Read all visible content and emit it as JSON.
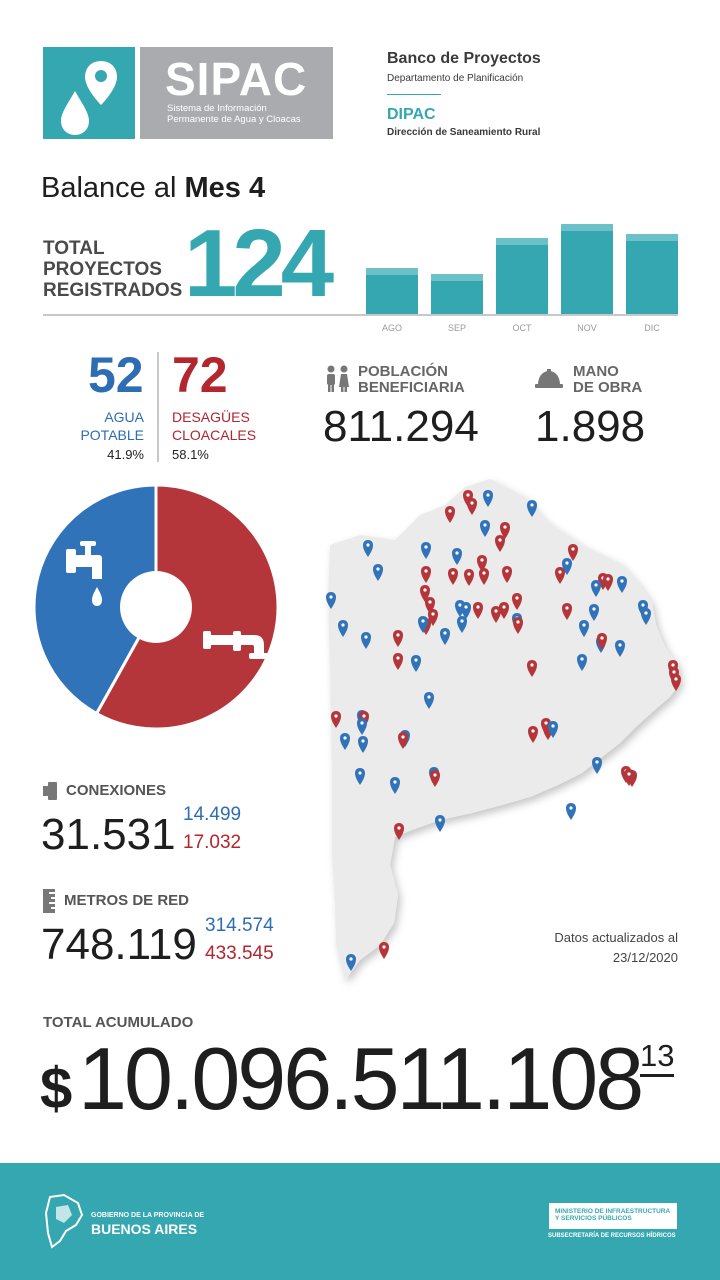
{
  "header": {
    "logo_title": "SIPAC",
    "logo_subtitle_line1": "Sistema de Información",
    "logo_subtitle_line2": "Permanente de Agua y Cloacas",
    "org_title": "Banco de Proyectos",
    "org_subtitle": "Departamento de Planificación",
    "dept_title": "DIPAC",
    "dept_subtitle": "Dirección de Saneamiento Rural",
    "icons": [
      "water-drop-icon",
      "map-pin-icon"
    ]
  },
  "balance": {
    "prefix": "Balance al",
    "month": "Mes 4"
  },
  "total_proyectos": {
    "label_line1": "TOTAL",
    "label_line2": "PROYECTOS",
    "label_line3": "REGISTRADOS",
    "value": "124"
  },
  "chart_data": {
    "type": "bar",
    "categories": [
      "AGO",
      "SEP",
      "OCT",
      "NOV",
      "DIC"
    ],
    "values": [
      46,
      40,
      76,
      90,
      80
    ],
    "title": "",
    "xlabel": "",
    "ylabel": "",
    "grid": false
  },
  "split": {
    "agua_value": "52",
    "agua_label_line1": "AGUA",
    "agua_label_line2": "POTABLE",
    "agua_percent": "41.9%",
    "desague_value": "72",
    "desague_label_line1": "DESAGÜES",
    "desague_label_line2": "CLOACALES",
    "desague_percent": "58.1%",
    "agua_fraction": 0.419,
    "desague_fraction": 0.581,
    "agua_color": "#3173b9",
    "desague_color": "#b5363a"
  },
  "poblacion": {
    "label_line1": "POBLACIÓN",
    "label_line2": "BENEFICIARIA",
    "value": "811.294",
    "icon": "people-icon"
  },
  "mano_obra": {
    "label_line1": "MANO",
    "label_line2": "DE OBRA",
    "value": "1.898",
    "icon": "hard-hat-icon"
  },
  "conexiones": {
    "label": "CONEXIONES",
    "total": "31.531",
    "agua": "14.499",
    "cloacas": "17.032",
    "icon": "faucet-connection-icon"
  },
  "metros": {
    "label": "METROS DE RED",
    "total": "748.119",
    "agua": "314.574",
    "cloacas": "433.545",
    "icon": "ruler-icon"
  },
  "map": {
    "note_line1": "Datos actualizados al",
    "note_line2": "23/12/2020",
    "blue_pin_color": "#3173b9",
    "red_pin_color": "#b5363a"
  },
  "acumulado": {
    "label": "TOTAL ACUMULADO",
    "currency": "$",
    "value": "10.096.511.108",
    "cents": "13"
  },
  "footer": {
    "gob_line1": "GOBIERNO DE LA PROVINCIA DE",
    "gob_line2": "BUENOS AIRES",
    "ministerio_line1": "MINISTERIO DE INFRAESTRUCTURA",
    "ministerio_line2": "Y SERVICIOS PÚBLICOS",
    "subsecretaria": "SUBSECRETARÍA DE RECURSOS HÍDRICOS"
  },
  "colors": {
    "teal": "#35a7b1",
    "blue": "#2d6db3",
    "red": "#b3262d",
    "gray": "#a9abae"
  }
}
